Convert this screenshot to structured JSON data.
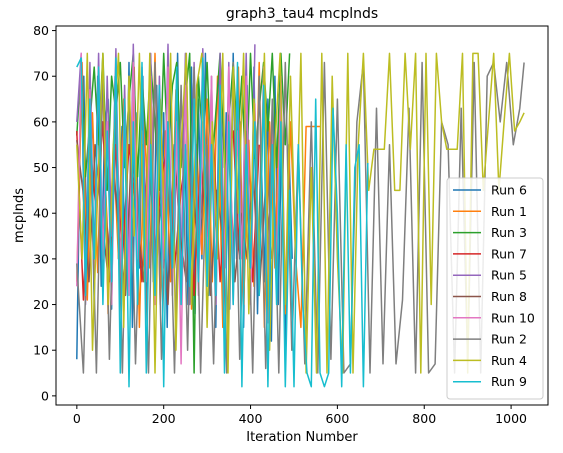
{
  "chart_data": {
    "type": "line",
    "title": "graph3_tau4 mcplnds",
    "xlabel": "Iteration Number",
    "ylabel": "mcplnds",
    "xlim": [
      -48,
      1085
    ],
    "ylim": [
      -2,
      81
    ],
    "xticks": [
      0,
      200,
      400,
      600,
      800,
      1000
    ],
    "yticks": [
      0,
      10,
      20,
      30,
      40,
      50,
      60,
      70,
      80
    ],
    "grid": false,
    "legend_position": "lower-right",
    "series": [
      {
        "name": "Run 6",
        "color": "#1f77b4",
        "x": [
          0,
          8,
          16,
          24,
          32,
          40,
          48,
          56,
          64,
          72,
          80,
          88,
          96,
          104,
          112,
          120,
          128,
          136,
          144,
          152,
          160,
          168,
          176,
          184,
          192,
          200,
          208,
          216,
          224,
          232,
          240,
          248,
          256,
          264,
          272,
          280,
          288,
          296,
          304,
          312,
          320,
          328,
          336,
          344,
          352,
          360,
          368,
          376,
          384,
          392,
          400,
          408,
          416,
          424,
          432,
          440,
          448,
          456,
          464,
          472,
          480,
          488,
          496
        ],
        "y": [
          8,
          59,
          70,
          24,
          65,
          19,
          70,
          24,
          59,
          65,
          19,
          70,
          30,
          59,
          24,
          73,
          15,
          62,
          28,
          70,
          19,
          60,
          25,
          68,
          22,
          62,
          15,
          70,
          30,
          75,
          25,
          60,
          20,
          72,
          18,
          65,
          30,
          75,
          22,
          58,
          15,
          70,
          25,
          62,
          19,
          75,
          30,
          60,
          15,
          68,
          22,
          72,
          18,
          55,
          25,
          65,
          12,
          70,
          20,
          60,
          8,
          55,
          30
        ]
      },
      {
        "name": "Run 1",
        "color": "#ff7f0e",
        "x": [
          0,
          12,
          24,
          36,
          48,
          60,
          72,
          84,
          96,
          108,
          120,
          132,
          144,
          156,
          168,
          180,
          192,
          204,
          216,
          228,
          240,
          252,
          264,
          276,
          288,
          300,
          312,
          324,
          336,
          348,
          360,
          372,
          384,
          396,
          408,
          420,
          432,
          444,
          456,
          468,
          480,
          492,
          504,
          516,
          528,
          540,
          552,
          560
        ],
        "y": [
          25,
          73,
          21,
          62,
          27,
          70,
          18,
          55,
          30,
          65,
          24,
          72,
          15,
          60,
          28,
          75,
          20,
          58,
          25,
          67,
          22,
          73,
          19,
          55,
          31,
          65,
          25,
          70,
          15,
          60,
          27,
          72,
          20,
          56,
          24,
          73,
          15,
          60,
          28,
          69,
          18,
          60,
          30,
          15,
          59,
          59,
          59,
          59
        ]
      },
      {
        "name": "Run 3",
        "color": "#2ca02c",
        "x": [
          0,
          10,
          20,
          30,
          40,
          50,
          60,
          70,
          80,
          90,
          100,
          110,
          120,
          130,
          140,
          150,
          160,
          170,
          180,
          190,
          200,
          210,
          220,
          230,
          240,
          250,
          260,
          270,
          280,
          290,
          300,
          310,
          320,
          330,
          340,
          350,
          360,
          370,
          380,
          390,
          400,
          410,
          420,
          430,
          440,
          450,
          460,
          470,
          480,
          490
        ],
        "y": [
          57,
          73,
          48,
          60,
          72,
          55,
          75,
          45,
          70,
          62,
          73,
          50,
          65,
          75,
          48,
          70,
          55,
          73,
          60,
          45,
          75,
          52,
          68,
          73,
          50,
          65,
          75,
          5,
          70,
          55,
          73,
          48,
          62,
          75,
          50,
          60,
          73,
          55,
          70,
          45,
          75,
          52,
          63,
          73,
          58,
          75,
          50,
          75,
          55,
          75
        ]
      },
      {
        "name": "Run 7",
        "color": "#d62728",
        "x": [
          0,
          15,
          30,
          45,
          60,
          75,
          90,
          105,
          120,
          135,
          150,
          165,
          180,
          195,
          210,
          225,
          240,
          255,
          270,
          285,
          300,
          315,
          330,
          345,
          360,
          375,
          390,
          405,
          420
        ],
        "y": [
          58,
          21,
          55,
          40,
          60,
          25,
          55,
          30,
          55,
          42,
          25,
          57,
          30,
          48,
          55,
          28,
          45,
          55,
          22,
          52,
          35,
          55,
          25,
          50,
          58,
          30,
          45,
          25,
          55
        ]
      },
      {
        "name": "Run 5",
        "color": "#9467bd",
        "x": [
          0,
          10,
          20,
          30,
          40,
          50,
          60,
          70,
          80,
          90,
          100,
          110,
          120,
          130,
          140,
          150,
          160,
          170,
          180,
          190,
          200,
          210,
          220,
          230,
          240,
          250,
          260,
          270,
          280,
          290,
          300,
          310,
          320,
          330,
          340,
          350,
          360,
          370,
          380,
          390,
          400,
          410
        ],
        "y": [
          60,
          75,
          20,
          73,
          30,
          75,
          25,
          70,
          35,
          76,
          22,
          68,
          28,
          77,
          20,
          72,
          30,
          75,
          25,
          70,
          32,
          77,
          22,
          68,
          28,
          75,
          20,
          73,
          30,
          76,
          25,
          70,
          22,
          75,
          28,
          73,
          20,
          70,
          30,
          75,
          25,
          77
        ]
      },
      {
        "name": "Run 8",
        "color": "#8c564b",
        "x": [
          0,
          14,
          28,
          42,
          56,
          70,
          84,
          98,
          112,
          126,
          140,
          154,
          168,
          182,
          196,
          210,
          224,
          238,
          252,
          266,
          280,
          294,
          308,
          322,
          336,
          350,
          364,
          378,
          392,
          406,
          420,
          434,
          448
        ],
        "y": [
          56,
          45,
          25,
          55,
          40,
          28,
          50,
          35,
          22,
          55,
          38,
          25,
          50,
          30,
          45,
          20,
          55,
          35,
          25,
          48,
          30,
          52,
          22,
          45,
          35,
          55,
          25,
          40,
          30,
          50,
          22,
          45,
          30
        ]
      },
      {
        "name": "Run 10",
        "color": "#e377c2",
        "x": [
          0,
          10,
          20,
          30,
          40,
          50,
          60,
          70,
          80,
          90,
          100,
          110,
          120,
          130,
          140,
          150,
          160,
          170,
          180,
          190,
          200,
          210,
          220,
          230,
          240,
          250,
          260,
          270,
          280,
          290,
          300,
          310,
          320,
          330,
          340,
          350,
          360,
          370,
          380,
          390,
          400,
          410,
          420,
          430,
          440,
          450,
          460,
          470,
          480
        ],
        "y": [
          24,
          75,
          21,
          67,
          25,
          72,
          30,
          60,
          20,
          70,
          26,
          65,
          22,
          73,
          30,
          58,
          25,
          70,
          20,
          64,
          28,
          72,
          24,
          60,
          7,
          68,
          30,
          72,
          22,
          60,
          26,
          70,
          20,
          65,
          28,
          72,
          24,
          58,
          30,
          70,
          20,
          64,
          26,
          72,
          16,
          60,
          28,
          70,
          22
        ]
      },
      {
        "name": "Run 2",
        "color": "#7f7f7f",
        "x": [
          0,
          15,
          30,
          45,
          60,
          75,
          90,
          105,
          120,
          135,
          150,
          165,
          180,
          195,
          210,
          225,
          240,
          255,
          270,
          285,
          300,
          315,
          330,
          345,
          360,
          375,
          390,
          405,
          420,
          435,
          450,
          465,
          480,
          495,
          510,
          525,
          540,
          555,
          570,
          585,
          600,
          615,
          630,
          645,
          660,
          675,
          690,
          705,
          720,
          735,
          750,
          765,
          780,
          795,
          810,
          825,
          840,
          855,
          870,
          885,
          900,
          915,
          930,
          945,
          960,
          975,
          990,
          1005,
          1020,
          1030
        ],
        "y": [
          29,
          5,
          60,
          5,
          72,
          8,
          65,
          5,
          70,
          7,
          55,
          5,
          73,
          8,
          60,
          5,
          68,
          10,
          72,
          5,
          55,
          7,
          63,
          5,
          73,
          8,
          58,
          5,
          70,
          6,
          65,
          5,
          73,
          10,
          55,
          7,
          60,
          5,
          73,
          8,
          65,
          5,
          7,
          60,
          73,
          5,
          63,
          7,
          55,
          7,
          21,
          63,
          5,
          73,
          5,
          7,
          60,
          55,
          5,
          63,
          7,
          73,
          5,
          70,
          73,
          60,
          73,
          55,
          63,
          73
        ]
      },
      {
        "name": "Run 4",
        "color": "#bcbd22",
        "x": [
          0,
          12,
          24,
          36,
          48,
          60,
          72,
          84,
          96,
          108,
          120,
          132,
          144,
          156,
          168,
          180,
          192,
          204,
          216,
          228,
          240,
          252,
          264,
          276,
          288,
          300,
          312,
          324,
          336,
          348,
          360,
          372,
          384,
          396,
          408,
          420,
          432,
          444,
          456,
          468,
          480,
          492,
          504,
          516,
          528,
          540,
          552,
          564,
          576,
          588,
          600,
          612,
          624,
          636,
          648,
          660,
          672,
          684,
          696,
          708,
          720,
          732,
          744,
          756,
          768,
          780,
          792,
          804,
          816,
          828,
          840,
          852,
          864,
          876,
          888,
          900,
          912,
          924,
          936,
          948,
          960,
          972,
          984,
          996,
          1008,
          1020,
          1030
        ],
        "y": [
          55,
          30,
          75,
          10,
          45,
          75,
          20,
          55,
          75,
          15,
          70,
          35,
          75,
          25,
          75,
          5,
          65,
          30,
          75,
          10,
          55,
          75,
          20,
          68,
          75,
          15,
          60,
          30,
          75,
          5,
          72,
          40,
          75,
          18,
          65,
          30,
          75,
          10,
          55,
          75,
          20,
          70,
          30,
          75,
          5,
          50,
          5,
          75,
          5,
          70,
          30,
          5,
          75,
          5,
          55,
          75,
          45,
          54,
          54,
          54,
          75,
          45,
          45,
          75,
          54,
          75,
          5,
          75,
          20,
          75,
          60,
          54,
          54,
          54,
          75,
          5,
          75,
          75,
          45,
          60,
          75,
          45,
          60,
          75,
          58,
          60,
          62
        ]
      },
      {
        "name": "Run 9",
        "color": "#17becf",
        "x": [
          0,
          10,
          20,
          30,
          40,
          50,
          60,
          70,
          80,
          90,
          100,
          110,
          120,
          130,
          140,
          150,
          160,
          170,
          180,
          190,
          200,
          210,
          220,
          230,
          240,
          250,
          260,
          270,
          280,
          290,
          300,
          310,
          320,
          330,
          340,
          350,
          360,
          370,
          380,
          390,
          400,
          410,
          420,
          430,
          440,
          450,
          460,
          470,
          480,
          490,
          500,
          510,
          520,
          530,
          540,
          550,
          560,
          570,
          580,
          590,
          600,
          610,
          620,
          630,
          640,
          650,
          660,
          670
        ],
        "y": [
          72,
          74,
          22,
          65,
          30,
          72,
          20,
          58,
          25,
          74,
          5,
          65,
          2,
          60,
          20,
          73,
          5,
          55,
          22,
          68,
          2,
          60,
          28,
          72,
          20,
          55,
          24,
          65,
          25,
          74,
          24,
          55,
          22,
          68,
          5,
          60,
          20,
          73,
          2,
          55,
          28,
          60,
          22,
          68,
          2,
          55,
          20,
          60,
          2,
          45,
          2,
          55,
          20,
          5,
          2,
          65,
          5,
          2,
          5,
          63,
          40,
          2,
          55,
          5,
          50,
          55,
          2,
          51
        ]
      }
    ]
  }
}
